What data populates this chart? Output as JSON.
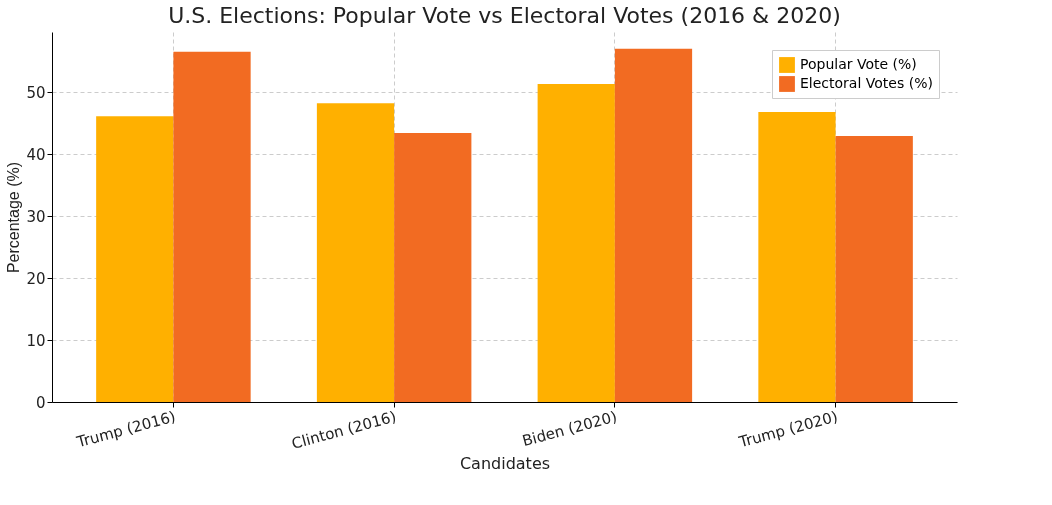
{
  "chart_data": {
    "type": "bar",
    "title": "U.S. Elections: Popular Vote vs Electoral Votes (2016 & 2020)",
    "xlabel": "Candidates",
    "ylabel": "Percentage (%)",
    "categories": [
      "Trump (2016)",
      "Clinton (2016)",
      "Biden (2020)",
      "Trump (2020)"
    ],
    "series": [
      {
        "name": "Popular Vote (%)",
        "color": "#ffb000",
        "values": [
          46.1,
          48.2,
          51.3,
          46.8
        ]
      },
      {
        "name": "Electoral Votes (%)",
        "color": "#f26b22",
        "values": [
          56.5,
          43.4,
          57.0,
          42.9
        ]
      }
    ],
    "ylim": [
      0,
      59.7
    ],
    "yticks": [
      0,
      10,
      20,
      30,
      40,
      50
    ],
    "grid": true,
    "legend": "top right"
  }
}
